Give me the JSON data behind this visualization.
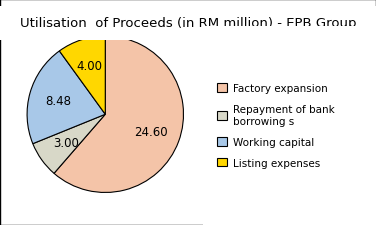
{
  "title": "Utilisation  of Proceeds (in RM million) - EPB Group",
  "slices": [
    24.6,
    3.0,
    8.48,
    4.0
  ],
  "labels": [
    "24.60",
    "3.00",
    "8.48",
    "4.00"
  ],
  "legend_labels": [
    "Factory expansion",
    "Repayment of bank\nborrowing s",
    "Working capital",
    "Listing expenses"
  ],
  "colors": [
    "#F4C4A8",
    "#D8D8C8",
    "#A8C8E8",
    "#FFD700"
  ],
  "startangle": 90,
  "background_color": "#FFFFFF",
  "title_fontsize": 9.5,
  "label_fontsize": 8.5
}
